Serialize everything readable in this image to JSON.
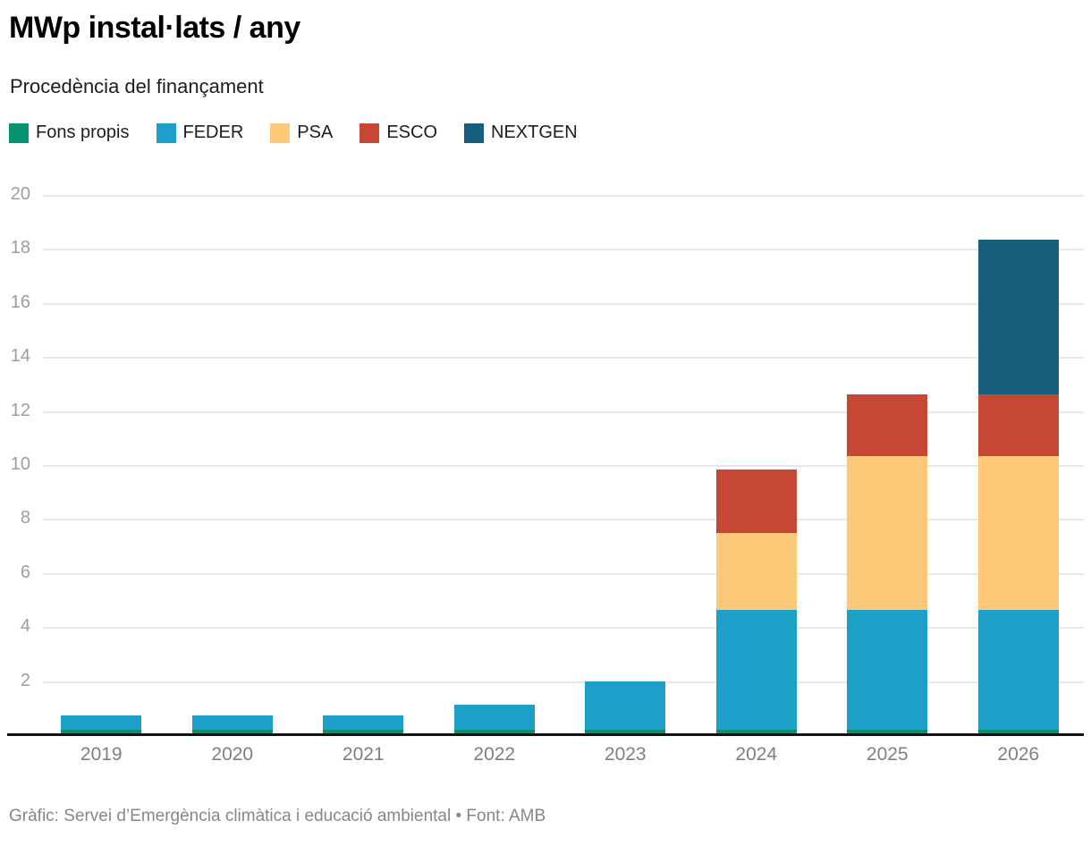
{
  "header": {
    "title": "MWp instal·lats / any",
    "subtitle": "Procedència del finançament"
  },
  "footer": {
    "text": "Gràfic: Servei d’Emergència climàtica i educació ambiental • Font: AMB"
  },
  "colors": {
    "fons_propis": "#049271",
    "feder": "#1d9fc7",
    "psa": "#fdc877",
    "esco": "#c64733",
    "nextgen": "#175f7c",
    "gridline": "#e9e9e9",
    "axis_line": "#111111",
    "tick_text": "#9d9d9d"
  },
  "chart_data": {
    "type": "bar",
    "stacked": true,
    "title": "MWp instal·lats / any",
    "subtitle": "Procedència del finançament",
    "xlabel": "",
    "ylabel": "",
    "ylim": [
      0,
      20
    ],
    "yticks": [
      2,
      4,
      6,
      8,
      10,
      12,
      14,
      16,
      18,
      20
    ],
    "grid": true,
    "legend_position": "top",
    "categories": [
      "2019",
      "2020",
      "2021",
      "2022",
      "2023",
      "2024",
      "2025",
      "2026"
    ],
    "series": [
      {
        "name": "Fons propis",
        "color": "#049271",
        "values": [
          0.15,
          0.15,
          0.15,
          0.15,
          0.15,
          0.15,
          0.15,
          0.15
        ]
      },
      {
        "name": "FEDER",
        "color": "#1d9fc7",
        "values": [
          0.55,
          0.55,
          0.55,
          0.95,
          1.8,
          4.45,
          4.45,
          4.45
        ]
      },
      {
        "name": "PSA",
        "color": "#fdc877",
        "values": [
          0,
          0,
          0,
          0,
          0,
          2.85,
          5.7,
          5.7
        ]
      },
      {
        "name": "ESCO",
        "color": "#c64733",
        "values": [
          0,
          0,
          0,
          0,
          0,
          2.35,
          2.3,
          2.3
        ]
      },
      {
        "name": "NEXTGEN",
        "color": "#175f7c",
        "values": [
          0,
          0,
          0,
          0,
          0,
          0,
          0,
          5.7
        ]
      }
    ],
    "totals": [
      0.7,
      0.7,
      0.7,
      1.1,
      1.95,
      9.8,
      12.6,
      18.3
    ]
  }
}
